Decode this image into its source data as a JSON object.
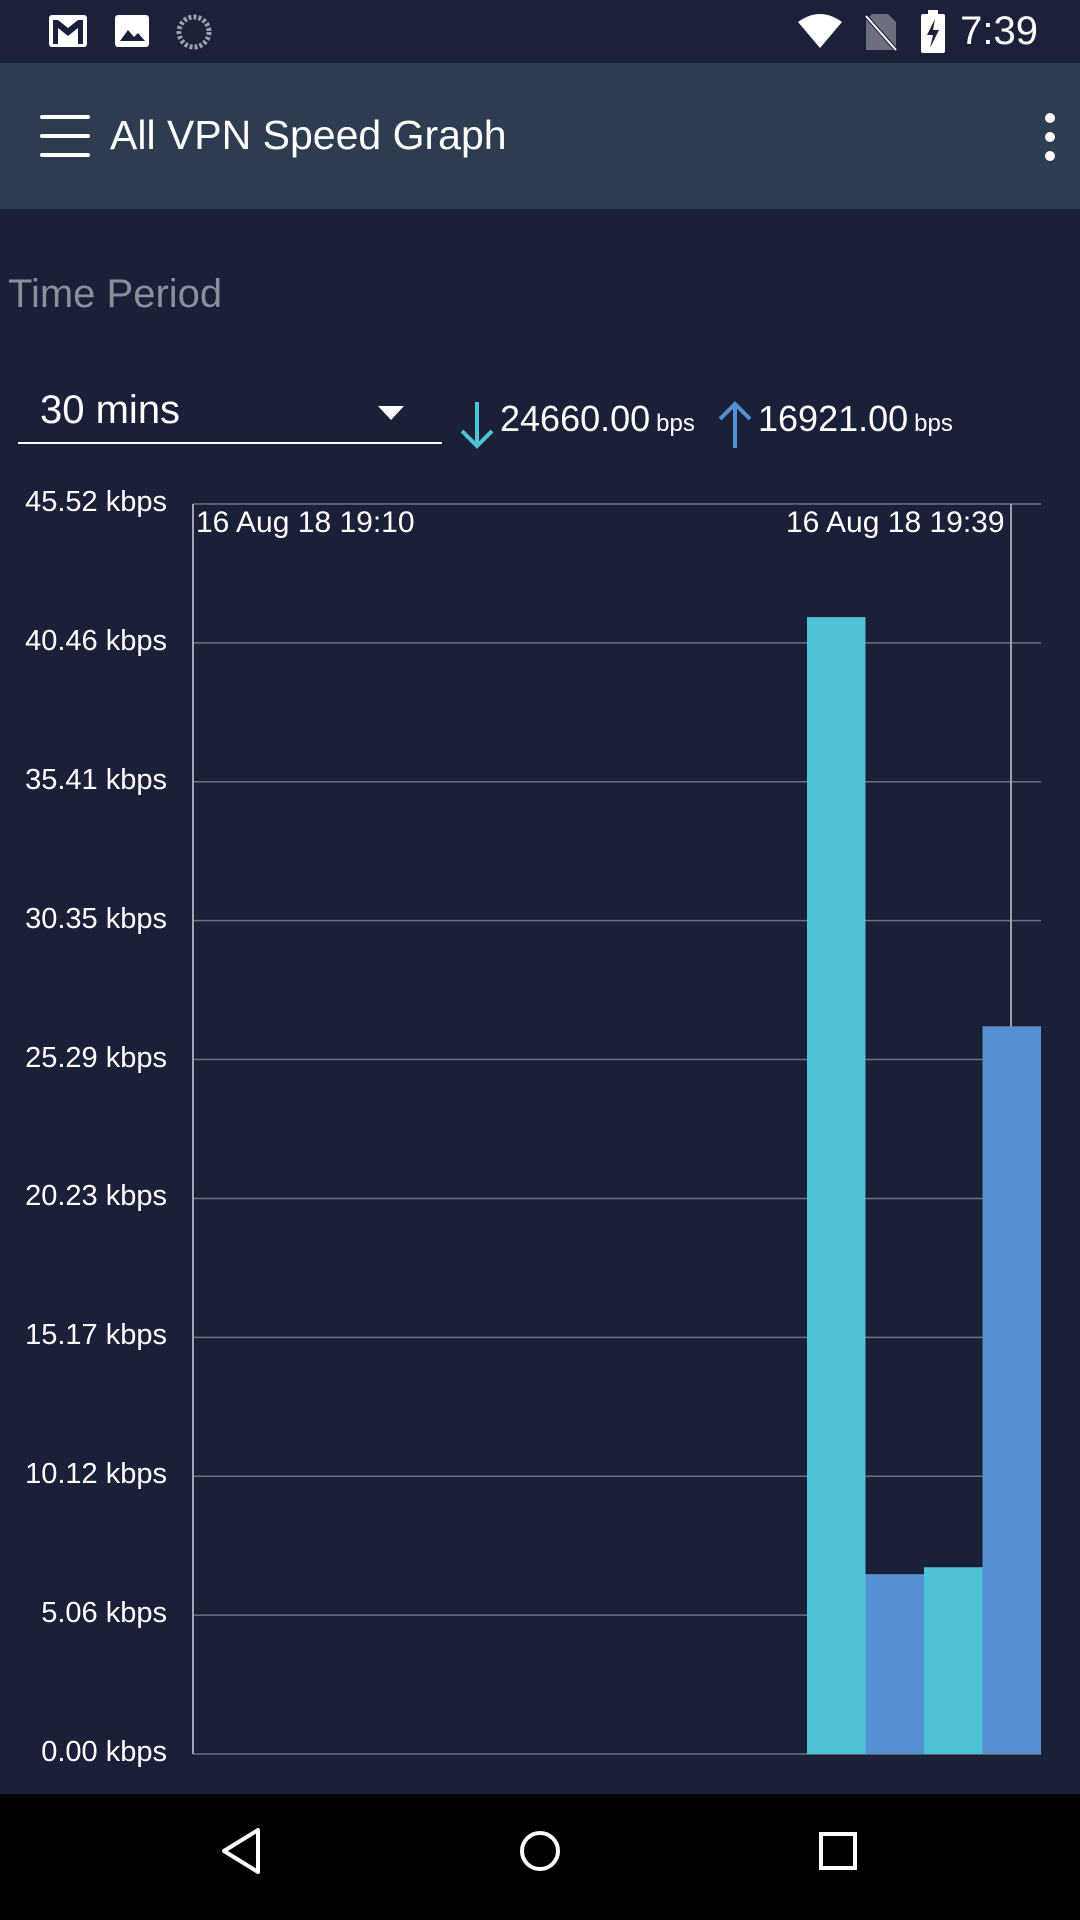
{
  "status_bar": {
    "time": "7:39",
    "left_icons": [
      "gmail-icon",
      "gallery-icon",
      "sync-icon"
    ],
    "right_icons": [
      "wifi-icon",
      "no-sim-icon",
      "battery-charging-icon"
    ]
  },
  "toolbar": {
    "title": "All VPN Speed Graph",
    "menu_icon": "hamburger-menu-icon",
    "overflow_icon": "more-vert-icon"
  },
  "time_period": {
    "label": "Time Period",
    "selected": "30 mins"
  },
  "speeds": {
    "download_value": "24660.00",
    "download_unit": "bps",
    "upload_value": "16921.00",
    "upload_unit": "bps"
  },
  "colors": {
    "background": "#1a2037",
    "toolbar": "#2e3c50",
    "download": "#4fc3d6",
    "upload": "#5591d1",
    "grid": "#6b7180"
  },
  "chart_data": {
    "type": "bar",
    "y_ticks": [
      "45.52 kbps",
      "40.46 kbps",
      "35.41 kbps",
      "30.35 kbps",
      "25.29 kbps",
      "20.23 kbps",
      "15.17 kbps",
      "10.12 kbps",
      "5.06 kbps",
      "0.00 kbps"
    ],
    "ylim": [
      0,
      45.52
    ],
    "x_labels": [
      "16 Aug 18 19:10",
      "16 Aug 18 19:39"
    ],
    "bars": [
      {
        "series": "download",
        "value": 41.4
      },
      {
        "series": "upload",
        "value": 6.55
      },
      {
        "series": "download",
        "value": 6.8
      },
      {
        "series": "upload",
        "value": 26.5
      }
    ],
    "grid": true
  },
  "nav_bar": {
    "buttons": [
      "back-icon",
      "home-icon",
      "recents-icon"
    ]
  }
}
